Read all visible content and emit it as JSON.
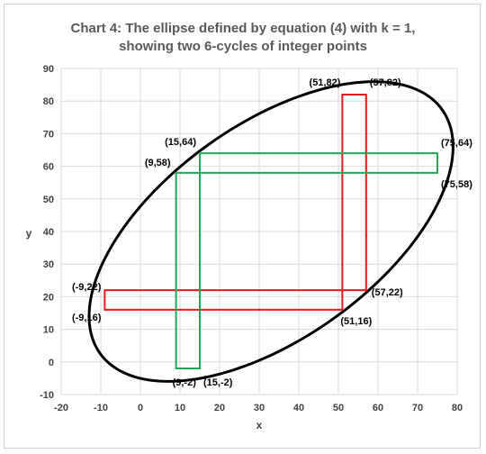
{
  "chart_data": {
    "type": "scatter",
    "title_line1": "Chart 4: The ellipse defined by equation (4) with k = 1,",
    "title_line2": "showing two 6-cycles of integer points",
    "xlabel": "x",
    "ylabel": "y",
    "xlim": [
      -20,
      80
    ],
    "ylim": [
      -10,
      90
    ],
    "x_ticks": [
      "-20",
      "-10",
      "0",
      "10",
      "20",
      "30",
      "40",
      "50",
      "60",
      "70",
      "80"
    ],
    "y_ticks": [
      "-10",
      "0",
      "10",
      "20",
      "30",
      "40",
      "50",
      "60",
      "70",
      "80",
      "90"
    ],
    "grid": true,
    "ellipse": {
      "center": [
        33,
        40
      ],
      "semi_axis_major": 57.5,
      "semi_axis_minor": 30.3,
      "rotation_deg": 45,
      "color": "#000000"
    },
    "series": [
      {
        "color": "#e31a1c",
        "points": [
          [
            -9,
            22
          ],
          [
            57,
            22
          ],
          [
            57,
            82
          ],
          [
            51,
            82
          ],
          [
            51,
            16
          ],
          [
            -9,
            16
          ]
        ]
      },
      {
        "color": "#1aaa55",
        "points": [
          [
            9,
            58
          ],
          [
            75,
            58
          ],
          [
            75,
            64
          ],
          [
            15,
            64
          ],
          [
            15,
            -2
          ],
          [
            9,
            -2
          ]
        ]
      }
    ],
    "point_labels": [
      {
        "text": "(51,82)",
        "x": 51,
        "y": 82
      },
      {
        "text": "(57,82)",
        "x": 57,
        "y": 82
      },
      {
        "text": "(15,64)",
        "x": 15,
        "y": 64
      },
      {
        "text": "(9,58)",
        "x": 9,
        "y": 58
      },
      {
        "text": "(75,64)",
        "x": 75,
        "y": 64
      },
      {
        "text": "(75,58)",
        "x": 75,
        "y": 58
      },
      {
        "text": "(-9,22)",
        "x": -9,
        "y": 22
      },
      {
        "text": "(57,22)",
        "x": 57,
        "y": 22
      },
      {
        "text": "(-9,16)",
        "x": -9,
        "y": 16
      },
      {
        "text": "(51,16)",
        "x": 51,
        "y": 16
      },
      {
        "text": "(9,-2)",
        "x": 9,
        "y": -2
      },
      {
        "text": "(15,-2)",
        "x": 15,
        "y": -2
      }
    ]
  }
}
